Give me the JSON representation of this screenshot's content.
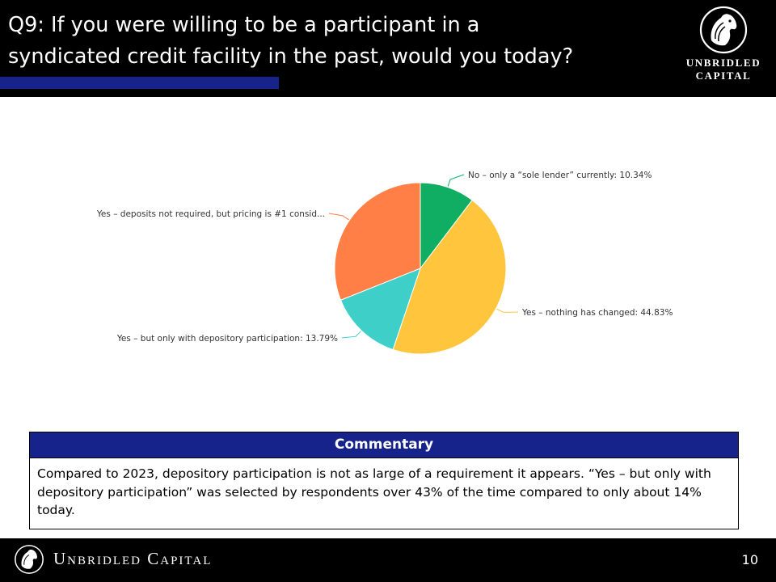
{
  "header": {
    "title": "Q9: If you were willing to be a participant in a\nsyndicated credit facility in the past, would you today?",
    "logo_text": "UNBRIDLED\nCAPITAL"
  },
  "chart_data": {
    "type": "pie",
    "slices": [
      {
        "label": "No – only a  “sole lender”  currently: 10.34%",
        "value": 10.34,
        "color": "#0fae62"
      },
      {
        "label": "Yes – nothing has changed: 44.83%",
        "value": 44.83,
        "color": "#ffc53d"
      },
      {
        "label": "Yes – but only with depository participation: 13.79%",
        "value": 13.79,
        "color": "#3ecfc9"
      },
      {
        "label": "Yes – deposits not required, but pricing is #1 consid...",
        "value": 31.03,
        "color": "#ff7f47"
      }
    ]
  },
  "commentary": {
    "heading": "Commentary",
    "body": "Compared to 2023, depository participation is not as large of a requirement it appears. “Yes – but only with depository participation” was selected by respondents over 43% of the time compared to only about 14% today."
  },
  "footer": {
    "brand": "Unbridled Capital",
    "page_number": "10"
  },
  "colors": {
    "header_bg": "#000000",
    "accent_blue": "#15238a"
  }
}
